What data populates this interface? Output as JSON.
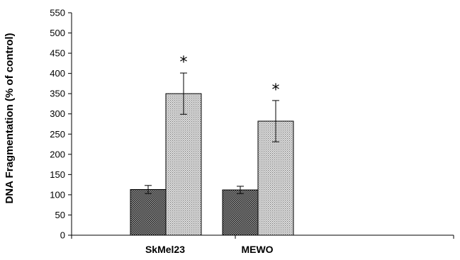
{
  "chart_data": {
    "type": "bar",
    "title": "",
    "xlabel": "",
    "ylabel": "DNA Fragmentation (% of control)",
    "ylim": [
      0,
      550
    ],
    "yticks": [
      0,
      50,
      100,
      150,
      200,
      250,
      300,
      350,
      400,
      450,
      500,
      550
    ],
    "grid": false,
    "legend": "none",
    "categories": [
      "SkMel23",
      "MEWO"
    ],
    "series": [
      {
        "values": [
          113,
          112
        ],
        "error": [
          10,
          9
        ],
        "pattern": "dark-dots",
        "color": "#555555"
      },
      {
        "values": [
          350,
          282
        ],
        "error": [
          51,
          51
        ],
        "annotations": [
          "*",
          "*"
        ],
        "pattern": "light-dots",
        "color": "#c4c4c4"
      }
    ]
  }
}
